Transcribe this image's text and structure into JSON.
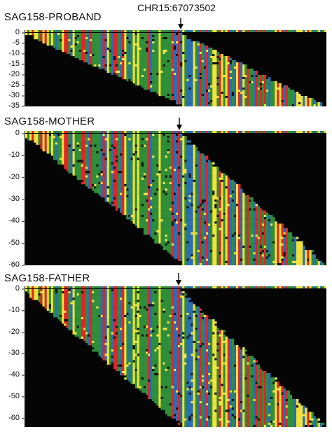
{
  "locus_label": "CHR15:67073502",
  "panels": [
    {
      "id": "proband",
      "label": "SAG158-PROBAND",
      "y_ticks": [
        "0",
        "-5",
        "-10",
        "-15",
        "-20",
        "-25",
        "-30",
        "-35"
      ],
      "y_values": [
        0,
        -5,
        -10,
        -15,
        -20,
        -25,
        -30,
        -35
      ],
      "depth": 35
    },
    {
      "id": "mother",
      "label": "SAG158-MOTHER",
      "y_ticks": [
        "0",
        "-10",
        "-20",
        "-30",
        "-40",
        "-50",
        "-60"
      ],
      "y_values": [
        0,
        -10,
        -20,
        -30,
        -40,
        -50,
        -60
      ],
      "depth": 60
    },
    {
      "id": "father",
      "label": "SAG158-FATHER",
      "y_ticks": [
        "0",
        "-10",
        "-20",
        "-30",
        "-40",
        "-50",
        "-60"
      ],
      "y_values": [
        0,
        -10,
        -20,
        -30,
        -40,
        -50,
        -60
      ],
      "depth": 64
    }
  ],
  "colors": {
    "background": "#050505",
    "A": "#2f8f3a",
    "C": "#2a6fb3",
    "G": "#f2e23a",
    "T": "#e0262a",
    "mismatch": "#f5e84a",
    "deletion": "#101010",
    "axis": "#222222"
  }
}
